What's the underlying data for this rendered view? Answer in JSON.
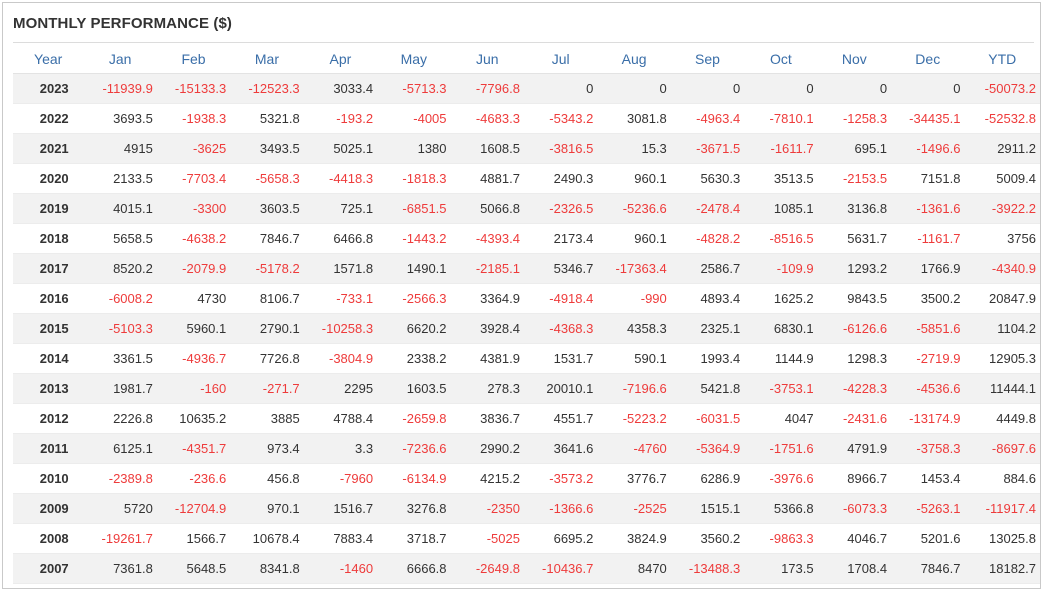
{
  "title": "MONTHLY PERFORMANCE ($)",
  "colors": {
    "negative": "#ee3b3b",
    "header": "#3a6ea8",
    "text": "#333333",
    "stripe": "#f2f2f2"
  },
  "columns": [
    "Year",
    "Jan",
    "Feb",
    "Mar",
    "Apr",
    "May",
    "Jun",
    "Jul",
    "Aug",
    "Sep",
    "Oct",
    "Nov",
    "Dec",
    "YTD"
  ],
  "rows": [
    [
      "2023",
      "-11939.9",
      "-15133.3",
      "-12523.3",
      "3033.4",
      "-5713.3",
      "-7796.8",
      "0",
      "0",
      "0",
      "0",
      "0",
      "0",
      "-50073.2"
    ],
    [
      "2022",
      "3693.5",
      "-1938.3",
      "5321.8",
      "-193.2",
      "-4005",
      "-4683.3",
      "-5343.2",
      "3081.8",
      "-4963.4",
      "-7810.1",
      "-1258.3",
      "-34435.1",
      "-52532.8"
    ],
    [
      "2021",
      "4915",
      "-3625",
      "3493.5",
      "5025.1",
      "1380",
      "1608.5",
      "-3816.5",
      "15.3",
      "-3671.5",
      "-1611.7",
      "695.1",
      "-1496.6",
      "2911.2"
    ],
    [
      "2020",
      "2133.5",
      "-7703.4",
      "-5658.3",
      "-4418.3",
      "-1818.3",
      "4881.7",
      "2490.3",
      "960.1",
      "5630.3",
      "3513.5",
      "-2153.5",
      "7151.8",
      "5009.4"
    ],
    [
      "2019",
      "4015.1",
      "-3300",
      "3603.5",
      "725.1",
      "-6851.5",
      "5066.8",
      "-2326.5",
      "-5236.6",
      "-2478.4",
      "1085.1",
      "3136.8",
      "-1361.6",
      "-3922.2"
    ],
    [
      "2018",
      "5658.5",
      "-4638.2",
      "7846.7",
      "6466.8",
      "-1443.2",
      "-4393.4",
      "2173.4",
      "960.1",
      "-4828.2",
      "-8516.5",
      "5631.7",
      "-1161.7",
      "3756"
    ],
    [
      "2017",
      "8520.2",
      "-2079.9",
      "-5178.2",
      "1571.8",
      "1490.1",
      "-2185.1",
      "5346.7",
      "-17363.4",
      "2586.7",
      "-109.9",
      "1293.2",
      "1766.9",
      "-4340.9"
    ],
    [
      "2016",
      "-6008.2",
      "4730",
      "8106.7",
      "-733.1",
      "-2566.3",
      "3364.9",
      "-4918.4",
      "-990",
      "4893.4",
      "1625.2",
      "9843.5",
      "3500.2",
      "20847.9"
    ],
    [
      "2015",
      "-5103.3",
      "5960.1",
      "2790.1",
      "-10258.3",
      "6620.2",
      "3928.4",
      "-4368.3",
      "4358.3",
      "2325.1",
      "6830.1",
      "-6126.6",
      "-5851.6",
      "1104.2"
    ],
    [
      "2014",
      "3361.5",
      "-4936.7",
      "7726.8",
      "-3804.9",
      "2338.2",
      "4381.9",
      "1531.7",
      "590.1",
      "1993.4",
      "1144.9",
      "1298.3",
      "-2719.9",
      "12905.3"
    ],
    [
      "2013",
      "1981.7",
      "-160",
      "-271.7",
      "2295",
      "1603.5",
      "278.3",
      "20010.1",
      "-7196.6",
      "5421.8",
      "-3753.1",
      "-4228.3",
      "-4536.6",
      "11444.1"
    ],
    [
      "2012",
      "2226.8",
      "10635.2",
      "3885",
      "4788.4",
      "-2659.8",
      "3836.7",
      "4551.7",
      "-5223.2",
      "-6031.5",
      "4047",
      "-2431.6",
      "-13174.9",
      "4449.8"
    ],
    [
      "2011",
      "6125.1",
      "-4351.7",
      "973.4",
      "3.3",
      "-7236.6",
      "2990.2",
      "3641.6",
      "-4760",
      "-5364.9",
      "-1751.6",
      "4791.9",
      "-3758.3",
      "-8697.6"
    ],
    [
      "2010",
      "-2389.8",
      "-236.6",
      "456.8",
      "-7960",
      "-6134.9",
      "4215.2",
      "-3573.2",
      "3776.7",
      "6286.9",
      "-3976.6",
      "8966.7",
      "1453.4",
      "884.6"
    ],
    [
      "2009",
      "5720",
      "-12704.9",
      "970.1",
      "1516.7",
      "3276.8",
      "-2350",
      "-1366.6",
      "-2525",
      "1515.1",
      "5366.8",
      "-6073.3",
      "-5263.1",
      "-11917.4"
    ],
    [
      "2008",
      "-19261.7",
      "1566.7",
      "10678.4",
      "7883.4",
      "3718.7",
      "-5025",
      "6695.2",
      "3824.9",
      "3560.2",
      "-9863.3",
      "4046.7",
      "5201.6",
      "13025.8"
    ],
    [
      "2007",
      "7361.8",
      "5648.5",
      "8341.8",
      "-1460",
      "6666.8",
      "-2649.8",
      "-10436.7",
      "8470",
      "-13488.3",
      "173.5",
      "1708.4",
      "7846.7",
      "18182.7"
    ]
  ]
}
